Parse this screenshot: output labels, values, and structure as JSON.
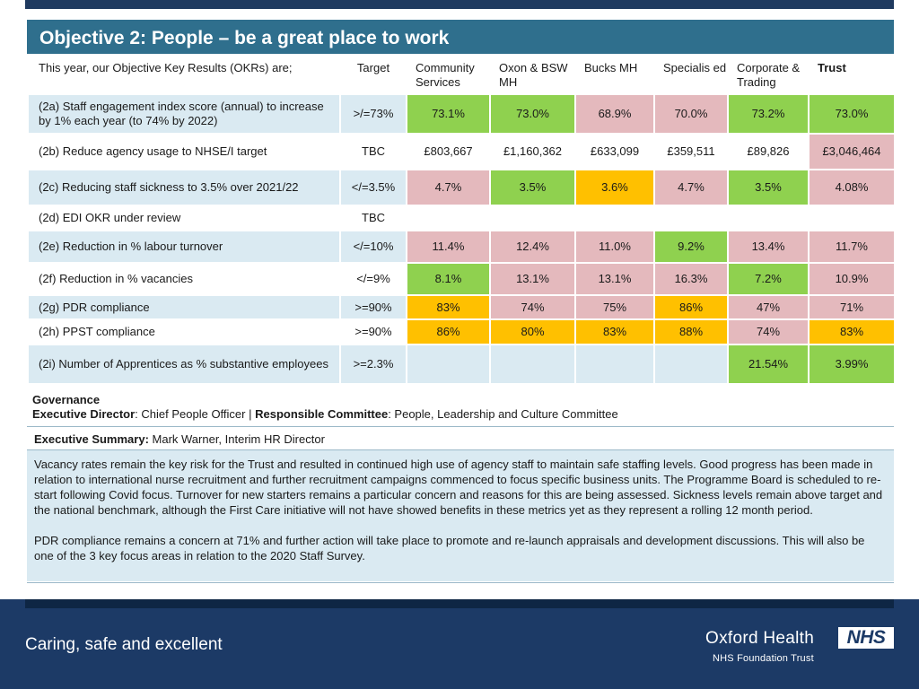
{
  "title": "Objective 2: People – be a great place to work",
  "table": {
    "header": {
      "okr": "This year, our Objective Key Results (OKRs) are;",
      "target": "Target",
      "community": "Community Services",
      "oxon": "Oxon & BSW MH",
      "bucks": "Bucks MH",
      "specialised": "Specialis ed",
      "corporate": "Corporate & Trading",
      "trust": "Trust"
    },
    "rows": [
      {
        "label": "(2a) Staff engagement index score (annual) to increase by 1% each year (to 74% by 2022)",
        "target": ">/=73%",
        "community": "73.1%",
        "oxon": "73.0%",
        "bucks": "68.9%",
        "specialised": "70.0%",
        "corporate": "73.2%",
        "trust": "73.0%"
      },
      {
        "label": "(2b) Reduce agency usage to NHSE/I target",
        "target": "TBC",
        "community": "£803,667",
        "oxon": "£1,160,362",
        "bucks": "£633,099",
        "specialised": "£359,511",
        "corporate": "£89,826",
        "trust": "£3,046,464"
      },
      {
        "label": "(2c) Reducing staff sickness to 3.5% over 2021/22",
        "target": "</=3.5%",
        "community": "4.7%",
        "oxon": "3.5%",
        "bucks": "3.6%",
        "specialised": "4.7%",
        "corporate": "3.5%",
        "trust": "4.08%"
      },
      {
        "label": "(2d) EDI OKR under review",
        "target": "TBC",
        "community": "",
        "oxon": "",
        "bucks": "",
        "specialised": "",
        "corporate": "",
        "trust": ""
      },
      {
        "label": "(2e) Reduction in % labour turnover",
        "target": "</=10%",
        "community": "11.4%",
        "oxon": "12.4%",
        "bucks": "11.0%",
        "specialised": "9.2%",
        "corporate": "13.4%",
        "trust": "11.7%"
      },
      {
        "label": "(2f) Reduction in % vacancies",
        "target": "</=9%",
        "community": "8.1%",
        "oxon": "13.1%",
        "bucks": "13.1%",
        "specialised": "16.3%",
        "corporate": "7.2%",
        "trust": "10.9%"
      },
      {
        "label": "(2g) PDR compliance",
        "target": ">=90%",
        "community": "83%",
        "oxon": "74%",
        "bucks": "75%",
        "specialised": "86%",
        "corporate": "47%",
        "trust": "71%"
      },
      {
        "label": "(2h) PPST compliance",
        "target": ">=90%",
        "community": "86%",
        "oxon": "80%",
        "bucks": "83%",
        "specialised": "88%",
        "corporate": "74%",
        "trust": "83%"
      },
      {
        "label": "(2i) Number of Apprentices as % substantive employees",
        "target": ">=2.3%",
        "community": "",
        "oxon": "",
        "bucks": "",
        "specialised": "",
        "corporate": "21.54%",
        "trust": "3.99%"
      }
    ]
  },
  "governance": {
    "heading": "Governance",
    "exec_director_label": "Executive Director",
    "exec_director_value": ": Chief People Officer | ",
    "committee_label": "Responsible Committee",
    "committee_value": ": People, Leadership and Culture Committee"
  },
  "executive_summary": {
    "label": "Executive Summary:",
    "author": " Mark Warner, Interim HR Director",
    "paragraph1": "Vacancy rates remain the key risk for the Trust and resulted in continued high use of agency staff to maintain safe staffing levels. Good progress has been made in relation to international nurse recruitment and further recruitment campaigns commenced to focus specific business units. The Programme Board is scheduled to re-start following Covid focus. Turnover for new starters remains a particular concern and reasons for this are being assessed.   Sickness levels remain above target and the national benchmark, although the First Care initiative will not have showed benefits in these metrics yet as they represent a rolling 12 month period.",
    "paragraph2": "PDR compliance remains a concern at 71% and further action will take place to promote and re-launch appraisals and development discussions. This will also be one of the 3 key focus areas in relation to the 2020 Staff Survey."
  },
  "footer": {
    "tagline": "Caring, safe and excellent",
    "org_name": "Oxford Health",
    "org_sub": "NHS Foundation Trust",
    "nhs_logo": "NHS"
  },
  "colors": {
    "title_bar": "#2f6f8d",
    "row_blue": "#daeaf2",
    "green": "#8fd14f",
    "pink": "#e4b9bd",
    "amber": "#ffc000",
    "footer": "#1c3a66"
  }
}
